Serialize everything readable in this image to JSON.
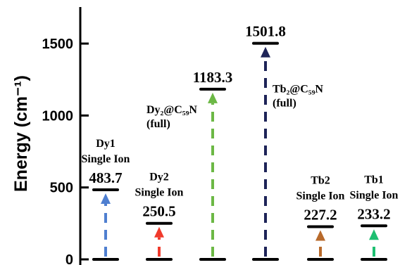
{
  "chart_data": {
    "type": "bar",
    "ylabel": "Energy (cm⁻¹)",
    "ylim": [
      0,
      1700
    ],
    "yticks": [
      0,
      500,
      1000,
      1500
    ],
    "grid": false,
    "series": [
      {
        "label": [
          "Dy1",
          "Single Ion"
        ],
        "value": 483.7,
        "value_label": "483.7",
        "color": "#4f7fd0"
      },
      {
        "label": [
          "Dy2",
          "Single Ion"
        ],
        "value": 250.5,
        "value_label": "250.5",
        "color": "#f03a2c"
      },
      {
        "label": [
          "Dy₂@C₅₉N",
          "(full)"
        ],
        "value": 1183.3,
        "value_label": "1183.3",
        "color": "#6cb845"
      },
      {
        "label": [
          "Tb₂@C₅₉N",
          "(full)"
        ],
        "value": 1501.8,
        "value_label": "1501.8",
        "color": "#1e2458"
      },
      {
        "label": [
          "Tb2",
          "Single Ion"
        ],
        "value": 227.2,
        "value_label": "227.2",
        "color": "#b86a2b"
      },
      {
        "label": [
          "Tb1",
          "Single Ion"
        ],
        "value": 233.2,
        "value_label": "233.2",
        "color": "#1fbf72"
      }
    ]
  }
}
